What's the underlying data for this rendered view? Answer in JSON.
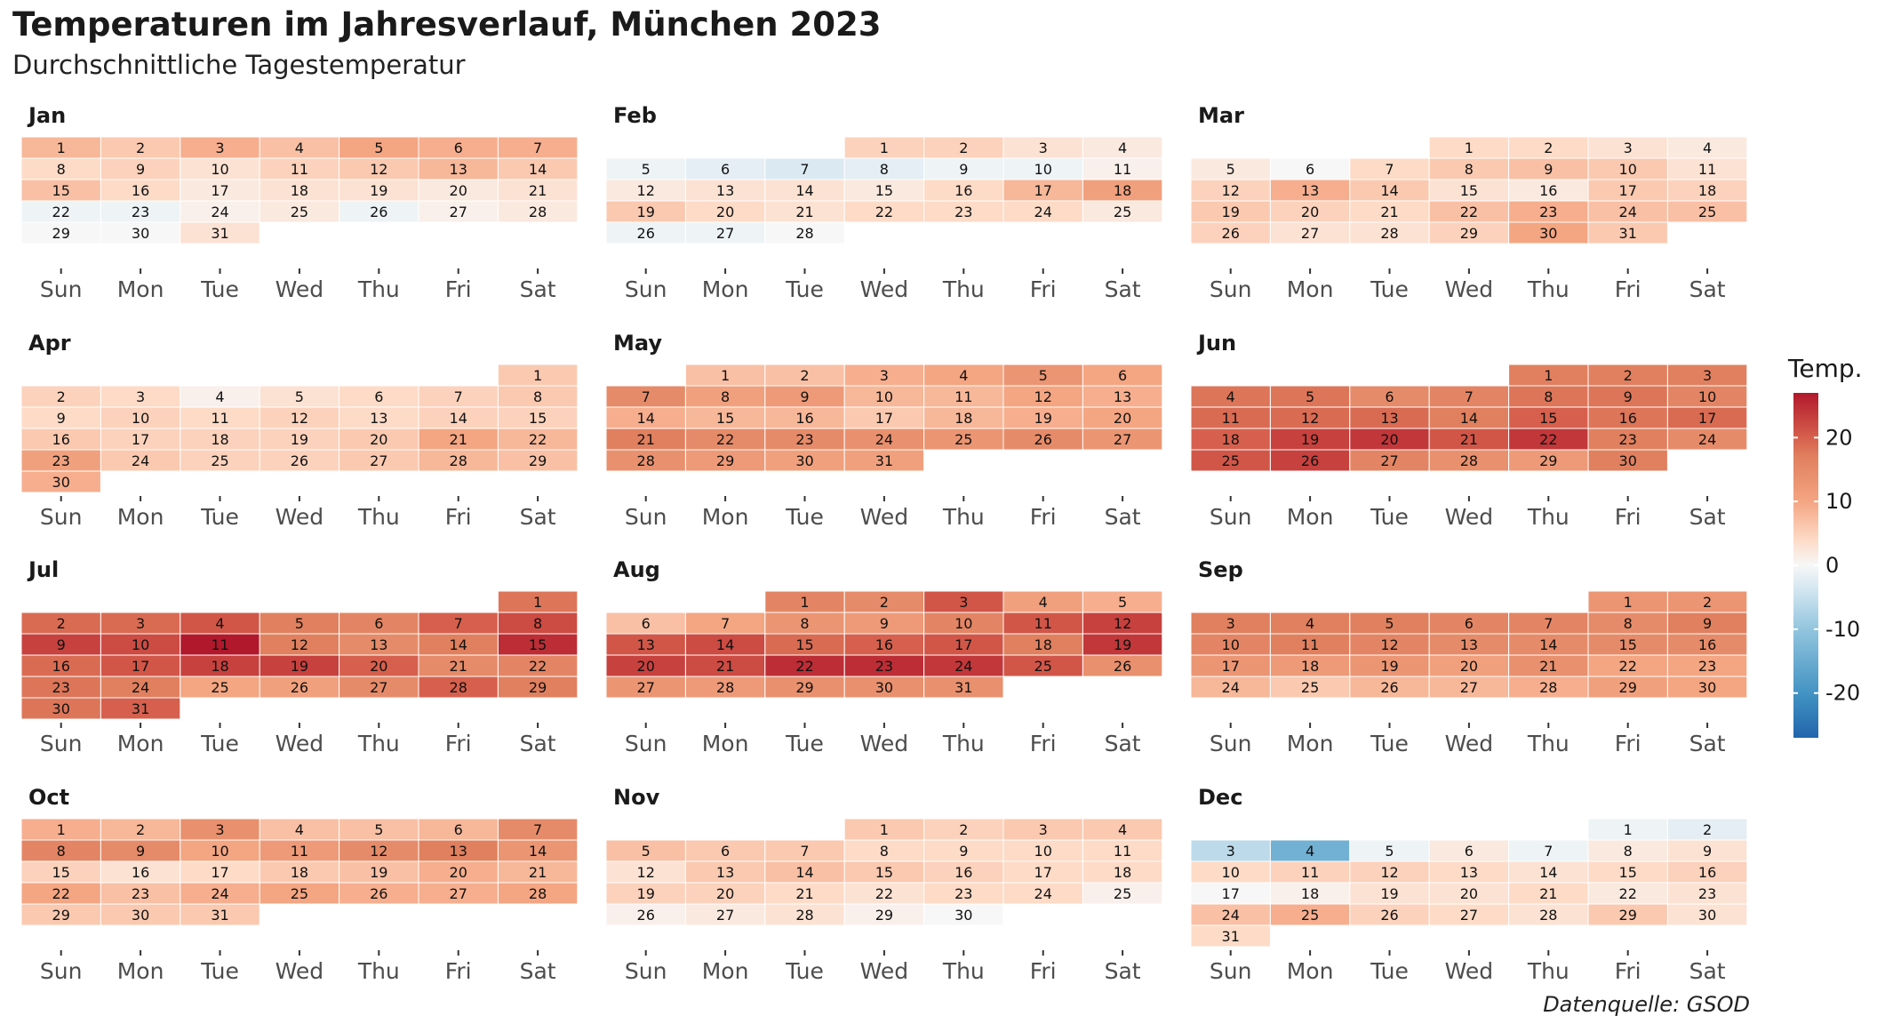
{
  "title": "Temperaturen im Jahresverlauf, München 2023",
  "subtitle": "Durchschnittliche Tagestemperatur",
  "caption": "Datenquelle: GSOD",
  "chart_data": {
    "type": "heatmap",
    "year": 2023,
    "weekdays": [
      "Sun",
      "Mon",
      "Tue",
      "Wed",
      "Thu",
      "Fri",
      "Sat"
    ],
    "legend": {
      "title": "Temp.",
      "ticks": [
        20,
        10,
        0,
        -10,
        -20
      ],
      "range": [
        -27,
        27
      ]
    },
    "colors": {
      "stops": [
        [
          -27,
          "#2166ac"
        ],
        [
          -20,
          "#4393c3"
        ],
        [
          -10,
          "#92c5de"
        ],
        [
          -4,
          "#d1e5f0"
        ],
        [
          0,
          "#f7f7f7"
        ],
        [
          4,
          "#fddbc7"
        ],
        [
          10,
          "#f4a582"
        ],
        [
          17,
          "#e0805f"
        ],
        [
          20,
          "#d6604d"
        ],
        [
          27,
          "#b2182b"
        ]
      ]
    },
    "months": [
      {
        "name": "Jan",
        "temps": [
          8,
          6,
          9,
          7,
          10,
          9,
          9,
          4,
          5,
          3,
          5,
          6,
          8,
          6,
          7,
          4,
          2,
          3,
          3,
          2,
          3,
          -1,
          -1,
          1,
          2,
          -1,
          1,
          2,
          0,
          0,
          3
        ]
      },
      {
        "name": "Feb",
        "temps": [
          5,
          5,
          3,
          2,
          -1,
          -2,
          -3,
          -2,
          -1,
          -1,
          1,
          2,
          3,
          3,
          2,
          4,
          8,
          11,
          6,
          4,
          3,
          4,
          4,
          4,
          2,
          -1,
          -1,
          0
        ]
      },
      {
        "name": "Mar",
        "temps": [
          4,
          4,
          3,
          2,
          2,
          0,
          4,
          6,
          7,
          6,
          3,
          5,
          9,
          6,
          3,
          2,
          6,
          5,
          6,
          5,
          4,
          7,
          9,
          7,
          7,
          5,
          3,
          3,
          5,
          10,
          6
        ]
      },
      {
        "name": "Apr",
        "temps": [
          6,
          5,
          4,
          1,
          3,
          4,
          5,
          6,
          4,
          5,
          4,
          5,
          4,
          5,
          5,
          6,
          5,
          5,
          5,
          6,
          10,
          8,
          11,
          6,
          5,
          5,
          6,
          8,
          7,
          9
        ]
      },
      {
        "name": "May",
        "temps": [
          7,
          7,
          9,
          10,
          13,
          10,
          15,
          11,
          12,
          8,
          8,
          10,
          9,
          9,
          8,
          8,
          6,
          8,
          9,
          10,
          17,
          15,
          15,
          14,
          13,
          15,
          13,
          14,
          12,
          11,
          11
        ]
      },
      {
        "name": "Jun",
        "temps": [
          17,
          17,
          17,
          18,
          18,
          15,
          16,
          18,
          18,
          16,
          19,
          19,
          19,
          17,
          20,
          18,
          19,
          20,
          23,
          24,
          21,
          24,
          17,
          15,
          21,
          23,
          16,
          14,
          12,
          17
        ]
      },
      {
        "name": "Jul",
        "temps": [
          18,
          19,
          19,
          21,
          17,
          16,
          20,
          22,
          23,
          22,
          27,
          17,
          15,
          17,
          25,
          19,
          21,
          23,
          23,
          20,
          15,
          16,
          18,
          17,
          10,
          11,
          15,
          20,
          17,
          18,
          20
        ]
      },
      {
        "name": "Aug",
        "temps": [
          16,
          15,
          21,
          11,
          9,
          7,
          10,
          13,
          12,
          16,
          21,
          23,
          21,
          22,
          19,
          20,
          21,
          17,
          24,
          23,
          22,
          25,
          25,
          24,
          21,
          14,
          13,
          12,
          14,
          14,
          14
        ]
      },
      {
        "name": "Sep",
        "temps": [
          13,
          13,
          17,
          17,
          17,
          16,
          16,
          15,
          17,
          16,
          17,
          16,
          15,
          15,
          15,
          15,
          13,
          12,
          13,
          11,
          14,
          10,
          10,
          8,
          6,
          8,
          8,
          9,
          11,
          10
        ]
      },
      {
        "name": "Oct",
        "temps": [
          9,
          8,
          14,
          7,
          7,
          8,
          15,
          16,
          15,
          10,
          12,
          15,
          17,
          13,
          5,
          3,
          4,
          6,
          7,
          9,
          8,
          10,
          7,
          9,
          10,
          9,
          9,
          10,
          6,
          6,
          6
        ]
      },
      {
        "name": "Nov",
        "temps": [
          6,
          5,
          6,
          6,
          7,
          6,
          6,
          4,
          4,
          4,
          4,
          3,
          6,
          7,
          6,
          5,
          4,
          4,
          5,
          5,
          4,
          3,
          4,
          4,
          1,
          1,
          2,
          3,
          1,
          0
        ]
      },
      {
        "name": "Dec",
        "temps": [
          -1,
          -2,
          -6,
          -14,
          -1,
          2,
          -1,
          2,
          3,
          4,
          5,
          5,
          4,
          3,
          4,
          5,
          0,
          1,
          3,
          3,
          4,
          2,
          3,
          7,
          9,
          5,
          4,
          3,
          6,
          3,
          4
        ]
      }
    ]
  }
}
